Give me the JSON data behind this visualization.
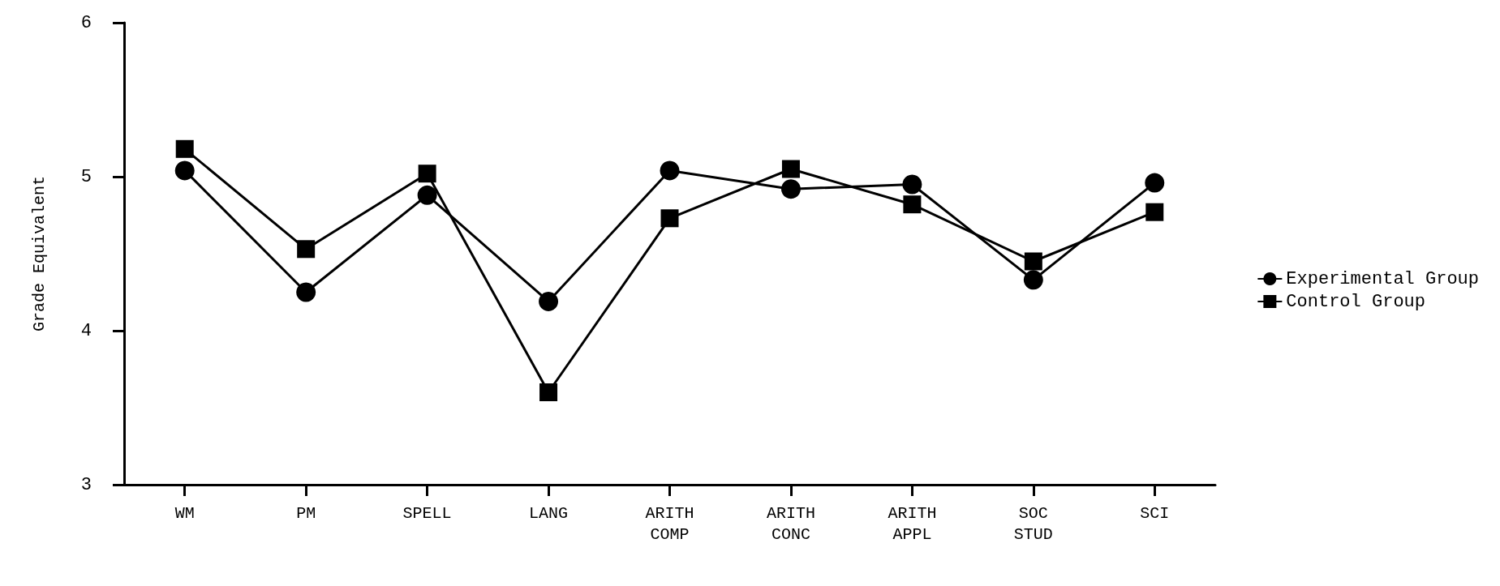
{
  "chart_data": {
    "type": "line",
    "ylabel": "Grade Equivalent",
    "categories": [
      "WM",
      "PM",
      "SPELL",
      "LANG",
      "ARITH\nCOMP",
      "ARITH\nCONC",
      "ARITH\nAPPL",
      "SOC\nSTUD",
      "SCI"
    ],
    "series": [
      {
        "name": "Experimental Group",
        "color": "#000000",
        "marker": "circle",
        "values": [
          5.04,
          4.25,
          4.88,
          4.19,
          5.04,
          4.92,
          4.95,
          4.33,
          4.96
        ]
      },
      {
        "name": "Control Group",
        "color": "#000000",
        "marker": "square",
        "values": [
          5.18,
          4.53,
          5.02,
          3.6,
          4.73,
          5.05,
          4.82,
          4.45,
          4.77
        ]
      }
    ],
    "ylim": [
      3,
      6
    ],
    "yticks": [
      3,
      4,
      5,
      6
    ],
    "grid": false,
    "legend": "right",
    "line_style": "solid"
  }
}
